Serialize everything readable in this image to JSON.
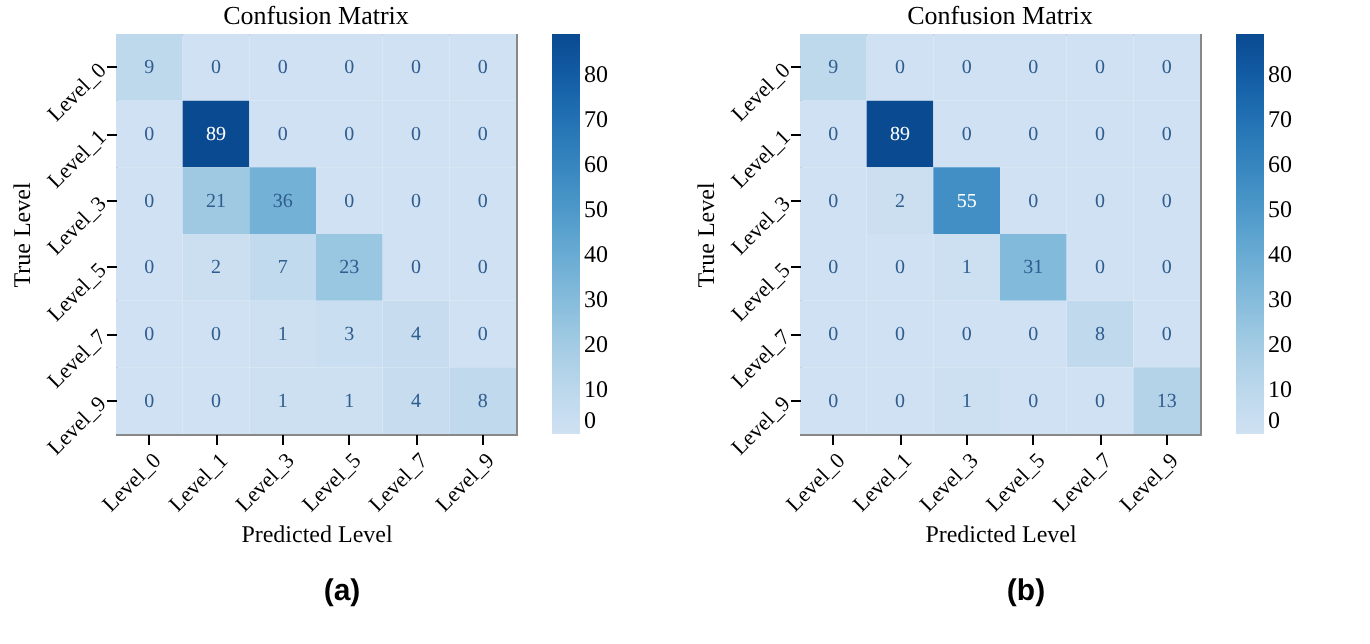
{
  "chart_data": [
    {
      "type": "heatmap",
      "title": "Confusion Matrix",
      "xlabel": "Predicted Level",
      "ylabel": "True Level",
      "annotations": [
        "(a)"
      ],
      "data_labels": true,
      "categories": [
        "Level_0",
        "Level_1",
        "Level_3",
        "Level_5",
        "Level_7",
        "Level_9"
      ],
      "y_categories": [
        "Level_0",
        "Level_1",
        "Level_3",
        "Level_5",
        "Level_7",
        "Level_9"
      ],
      "cells": [
        [
          9,
          0,
          0,
          0,
          0,
          0
        ],
        [
          0,
          89,
          0,
          0,
          0,
          0
        ],
        [
          0,
          21,
          36,
          0,
          0,
          0
        ],
        [
          0,
          2,
          7,
          23,
          0,
          0
        ],
        [
          0,
          0,
          1,
          3,
          4,
          0
        ],
        [
          0,
          0,
          1,
          1,
          4,
          8
        ]
      ],
      "clim": [
        0,
        89
      ],
      "cticks": [
        0,
        10,
        20,
        30,
        40,
        50,
        60,
        70,
        80
      ]
    },
    {
      "type": "heatmap",
      "title": "Confusion Matrix",
      "xlabel": "Predicted Level",
      "ylabel": "True Level",
      "annotations": [
        "(b)"
      ],
      "data_labels": true,
      "categories": [
        "Level_0",
        "Level_1",
        "Level_3",
        "Level_5",
        "Level_7",
        "Level_9"
      ],
      "y_categories": [
        "Level_0",
        "Level_1",
        "Level_3",
        "Level_5",
        "Level_7",
        "Level_9"
      ],
      "cells": [
        [
          9,
          0,
          0,
          0,
          0,
          0
        ],
        [
          0,
          89,
          0,
          0,
          0,
          0
        ],
        [
          0,
          2,
          55,
          0,
          0,
          0
        ],
        [
          0,
          0,
          1,
          31,
          0,
          0
        ],
        [
          0,
          0,
          0,
          0,
          8,
          0
        ],
        [
          0,
          0,
          1,
          0,
          0,
          13
        ]
      ],
      "clim": [
        0,
        89
      ],
      "cticks": [
        0,
        10,
        20,
        30,
        40,
        50,
        60,
        70,
        80
      ]
    }
  ]
}
